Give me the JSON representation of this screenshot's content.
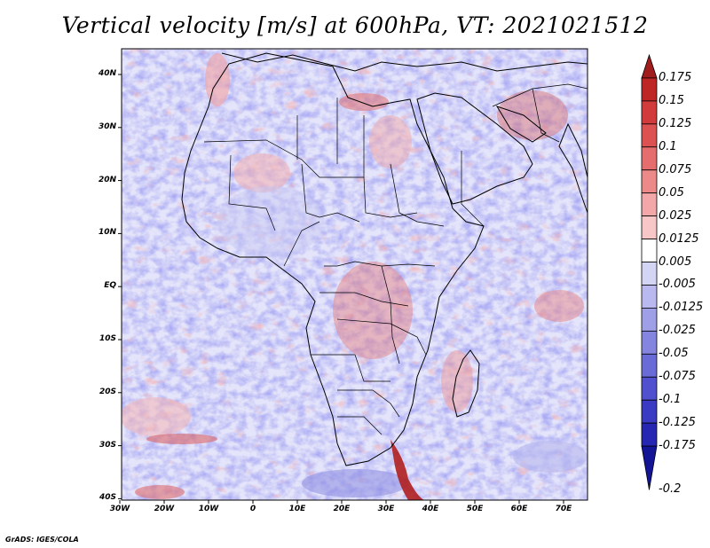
{
  "title": "Vertical velocity [m/s] at 600hPa, VT: 2021021512",
  "footer": "GrADS: IGES/COLA",
  "lat_labels": [
    "40N",
    "30N",
    "20N",
    "10N",
    "EQ",
    "10S",
    "20S",
    "30S",
    "40S"
  ],
  "lon_labels": [
    "30W",
    "20W",
    "10W",
    "0",
    "10E",
    "20E",
    "30E",
    "40E",
    "50E",
    "60E",
    "70E"
  ],
  "colorbar": {
    "labels": [
      "0.175",
      "0.15",
      "0.125",
      "0.1",
      "0.075",
      "0.05",
      "0.025",
      "0.0125",
      "0.005",
      "-0.005",
      "-0.0125",
      "-0.025",
      "-0.05",
      "-0.075",
      "-0.1",
      "-0.125",
      "-0.175",
      "-0.2"
    ],
    "colors": [
      "#a11c1c",
      "#be2626",
      "#d13b3b",
      "#dc5252",
      "#e56d6d",
      "#ec8a8a",
      "#f2a8a8",
      "#f7c6c6",
      "#ffffff",
      "#d4d4f5",
      "#b9b9ef",
      "#9f9fe8",
      "#8585e0",
      "#6b6bd8",
      "#5151cf",
      "#3a3ac3",
      "#2626b2",
      "#141496"
    ]
  }
}
